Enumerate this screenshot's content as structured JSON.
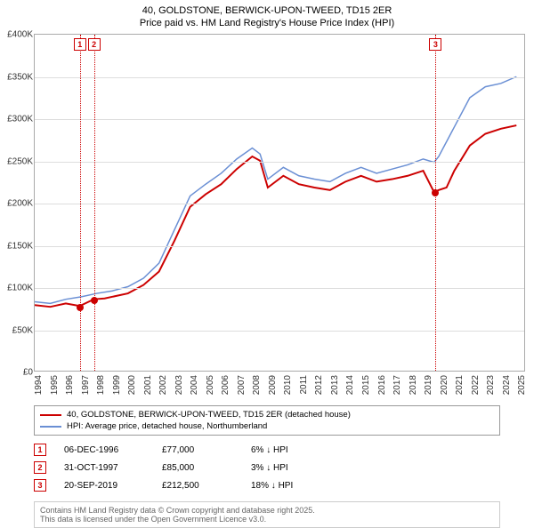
{
  "title_line1": "40, GOLDSTONE, BERWICK-UPON-TWEED, TD15 2ER",
  "title_line2": "Price paid vs. HM Land Registry's House Price Index (HPI)",
  "chart": {
    "type": "line",
    "background_color": "#ffffff",
    "grid_color": "#dddddd",
    "border_color": "#aaaaaa",
    "title_fontsize": 11,
    "label_fontsize": 10,
    "x_years": [
      "1994",
      "1995",
      "1996",
      "1997",
      "1998",
      "1999",
      "2000",
      "2001",
      "2002",
      "2003",
      "2004",
      "2005",
      "2006",
      "2007",
      "2008",
      "2009",
      "2010",
      "2011",
      "2012",
      "2013",
      "2014",
      "2015",
      "2016",
      "2017",
      "2018",
      "2019",
      "2020",
      "2021",
      "2022",
      "2023",
      "2024",
      "2025"
    ],
    "xlim": [
      1994,
      2025.5
    ],
    "ylim": [
      0,
      400000
    ],
    "ytick_step": 50000,
    "y_ticks": [
      0,
      50000,
      100000,
      150000,
      200000,
      250000,
      300000,
      350000,
      400000
    ],
    "y_tick_labels": [
      "£0",
      "£50K",
      "£100K",
      "£150K",
      "£200K",
      "£250K",
      "£300K",
      "£350K",
      "£400K"
    ],
    "series": [
      {
        "name": "property",
        "label": "40, GOLDSTONE, BERWICK-UPON-TWEED, TD15 2ER (detached house)",
        "color": "#cc0000",
        "line_width": 2,
        "data": [
          [
            1994,
            78000
          ],
          [
            1995,
            76000
          ],
          [
            1996,
            80000
          ],
          [
            1996.9,
            77000
          ],
          [
            1997.8,
            85000
          ],
          [
            1998.5,
            86000
          ],
          [
            1999,
            88000
          ],
          [
            2000,
            92000
          ],
          [
            2001,
            102000
          ],
          [
            2002,
            118000
          ],
          [
            2003,
            155000
          ],
          [
            2004,
            195000
          ],
          [
            2005,
            210000
          ],
          [
            2006,
            222000
          ],
          [
            2007,
            240000
          ],
          [
            2008,
            255000
          ],
          [
            2008.5,
            250000
          ],
          [
            2009,
            218000
          ],
          [
            2010,
            232000
          ],
          [
            2011,
            222000
          ],
          [
            2012,
            218000
          ],
          [
            2013,
            215000
          ],
          [
            2014,
            225000
          ],
          [
            2015,
            232000
          ],
          [
            2016,
            225000
          ],
          [
            2017,
            228000
          ],
          [
            2018,
            232000
          ],
          [
            2019,
            238000
          ],
          [
            2019.7,
            212500
          ],
          [
            2020,
            215000
          ],
          [
            2020.5,
            218000
          ],
          [
            2021,
            238000
          ],
          [
            2022,
            268000
          ],
          [
            2023,
            282000
          ],
          [
            2024,
            288000
          ],
          [
            2025,
            292000
          ]
        ]
      },
      {
        "name": "hpi",
        "label": "HPI: Average price, detached house, Northumberland",
        "color": "#6a8fd4",
        "line_width": 1.5,
        "data": [
          [
            1994,
            82000
          ],
          [
            1995,
            80000
          ],
          [
            1996,
            85000
          ],
          [
            1997,
            88000
          ],
          [
            1998,
            92000
          ],
          [
            1999,
            95000
          ],
          [
            2000,
            100000
          ],
          [
            2001,
            110000
          ],
          [
            2002,
            128000
          ],
          [
            2003,
            168000
          ],
          [
            2004,
            208000
          ],
          [
            2005,
            222000
          ],
          [
            2006,
            235000
          ],
          [
            2007,
            252000
          ],
          [
            2008,
            265000
          ],
          [
            2008.5,
            258000
          ],
          [
            2009,
            228000
          ],
          [
            2010,
            242000
          ],
          [
            2011,
            232000
          ],
          [
            2012,
            228000
          ],
          [
            2013,
            225000
          ],
          [
            2014,
            235000
          ],
          [
            2015,
            242000
          ],
          [
            2016,
            235000
          ],
          [
            2017,
            240000
          ],
          [
            2018,
            245000
          ],
          [
            2019,
            252000
          ],
          [
            2019.7,
            248000
          ],
          [
            2020,
            255000
          ],
          [
            2021,
            290000
          ],
          [
            2022,
            325000
          ],
          [
            2023,
            338000
          ],
          [
            2024,
            342000
          ],
          [
            2025,
            350000
          ]
        ]
      }
    ],
    "markers": [
      {
        "num": "1",
        "x": 1996.9,
        "y": 77000,
        "date": "06-DEC-1996",
        "price": "£77,000",
        "pct": "6% ↓ HPI",
        "color": "#cc0000"
      },
      {
        "num": "2",
        "x": 1997.8,
        "y": 85000,
        "date": "31-OCT-1997",
        "price": "£85,000",
        "pct": "3% ↓ HPI",
        "color": "#cc0000"
      },
      {
        "num": "3",
        "x": 2019.7,
        "y": 212500,
        "date": "20-SEP-2019",
        "price": "£212,500",
        "pct": "18% ↓ HPI",
        "color": "#cc0000"
      }
    ]
  },
  "legend": {
    "border_color": "#999999",
    "fontsize": 9.5
  },
  "marker_table": {
    "box_border": "#cc0000",
    "box_text_color": "#cc0000"
  },
  "footer_line1": "Contains HM Land Registry data © Crown copyright and database right 2025.",
  "footer_line2": "This data is licensed under the Open Government Licence v3.0."
}
